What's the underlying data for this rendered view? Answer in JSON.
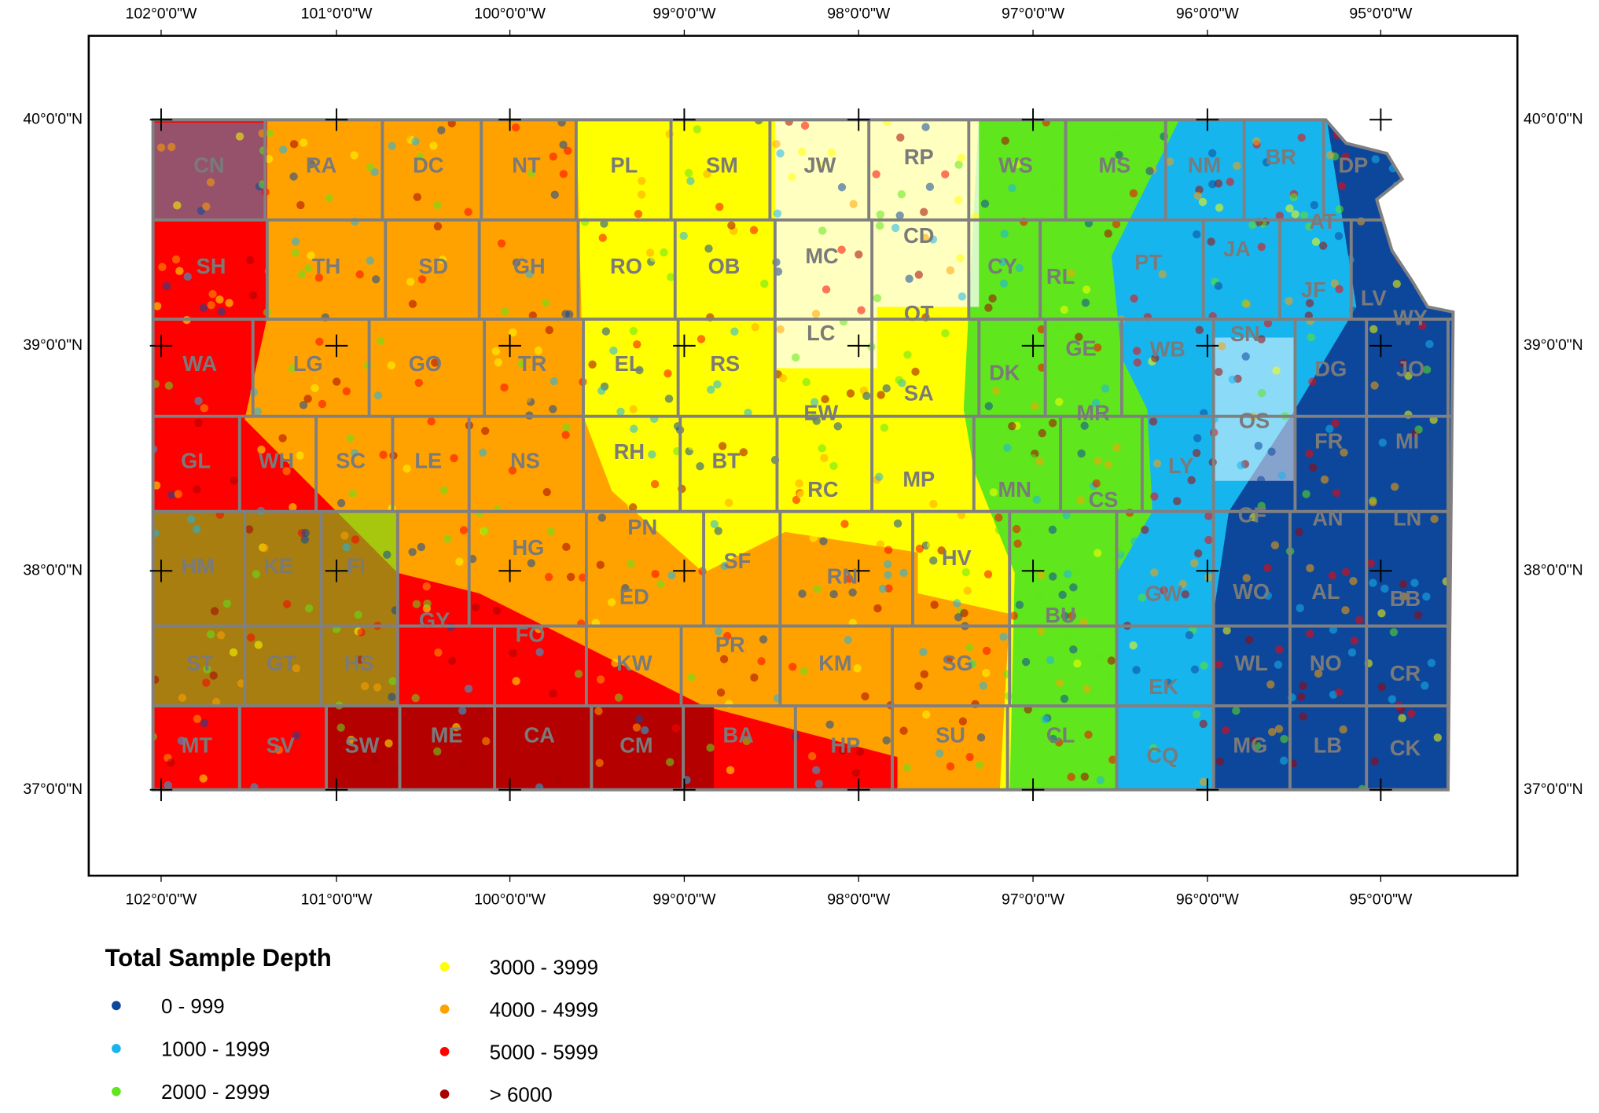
{
  "map": {
    "lon_labels": [
      "102°0'0\"W",
      "101°0'0\"W",
      "100°0'0\"W",
      "99°0'0\"W",
      "98°0'0\"W",
      "97°0'0\"W",
      "96°0'0\"W",
      "95°0'0\"W"
    ],
    "lat_labels": [
      "40°0'0\"N",
      "39°0'0\"N",
      "38°0'0\"N",
      "37°0'0\"N"
    ],
    "counties": [
      "CN",
      "RA",
      "DC",
      "NT",
      "PL",
      "SM",
      "JW",
      "RP",
      "WS",
      "MS",
      "NM",
      "BR",
      "DP",
      "SH",
      "TH",
      "SD",
      "GH",
      "RO",
      "OB",
      "MC",
      "CD",
      "CY",
      "RL",
      "PT",
      "JA",
      "AT",
      "JF",
      "LV",
      "OT",
      "LC",
      "WA",
      "LG",
      "GO",
      "TR",
      "EL",
      "RS",
      "GE",
      "WB",
      "SN",
      "WY",
      "DG",
      "JO",
      "DK",
      "SA",
      "EW",
      "GL",
      "WH",
      "SC",
      "LE",
      "NS",
      "RH",
      "BT",
      "MR",
      "OS",
      "FR",
      "MI",
      "LY",
      "MP",
      "MN",
      "CS",
      "RC",
      "PN",
      "HG",
      "CF",
      "AN",
      "LN",
      "HM",
      "KE",
      "FI",
      "SF",
      "HV",
      "RN",
      "ED",
      "GW",
      "WO",
      "AL",
      "BB",
      "GY",
      "FO",
      "ST",
      "GT",
      "HS",
      "KW",
      "PR",
      "KM",
      "SG",
      "BU",
      "EK",
      "WL",
      "NO",
      "CR",
      "MT",
      "SV",
      "SW",
      "ME",
      "CA",
      "CM",
      "BA",
      "HP",
      "SU",
      "CL",
      "CQ",
      "MG",
      "LB",
      "CK"
    ],
    "legend": {
      "title": "Total Sample Depth",
      "items": [
        {
          "label": "0 - 999",
          "color": "#0d479c"
        },
        {
          "label": "1000 - 1999",
          "color": "#17b5ee"
        },
        {
          "label": "2000 - 2999",
          "color": "#5fe61c"
        },
        {
          "label": "3000 - 3999",
          "color": "#ffff00"
        },
        {
          "label": "4000 - 4999",
          "color": "#ffa200"
        },
        {
          "label": "5000 - 5999",
          "color": "#ff0000"
        },
        {
          "label": "> 6000",
          "color": "#a80000"
        }
      ]
    }
  }
}
